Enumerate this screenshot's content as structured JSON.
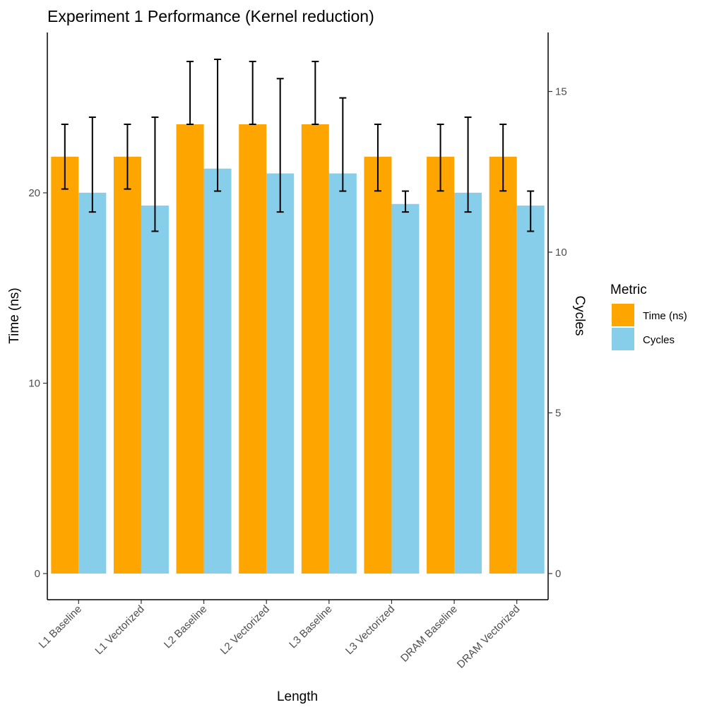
{
  "chart_data": {
    "type": "bar",
    "title": "Experiment 1 Performance (Kernel reduction)",
    "xlabel": "Length",
    "ylabel": "Time (ns)",
    "y2label": "Cycles",
    "categories": [
      "L1 Baseline",
      "L1 Vectorized",
      "L2 Baseline",
      "L2 Vectorized",
      "L3 Baseline",
      "L3 Vectorized",
      "DRAM Baseline",
      "DRAM Vectorized"
    ],
    "ylim": [
      0,
      28
    ],
    "y2lim": [
      0,
      16.8
    ],
    "yticks": [
      0,
      10,
      20
    ],
    "y2ticks": [
      0,
      5,
      10,
      15
    ],
    "series": [
      {
        "name": "Time (ns)",
        "axis": "left",
        "color": "#FFA500",
        "values": [
          21.9,
          21.9,
          23.6,
          23.6,
          23.6,
          21.9,
          21.9,
          21.9
        ],
        "error_low": [
          20.2,
          20.2,
          23.6,
          23.6,
          23.6,
          20.1,
          20.1,
          20.1
        ],
        "error_high": [
          23.6,
          23.6,
          26.9,
          26.9,
          26.9,
          23.6,
          23.6,
          23.6
        ]
      },
      {
        "name": "Cycles",
        "axis": "right",
        "color": "#87CEEB",
        "values": [
          11.85,
          11.45,
          12.6,
          12.45,
          12.45,
          11.5,
          11.85,
          11.45
        ],
        "error_low": [
          11.25,
          10.65,
          11.9,
          11.25,
          11.9,
          11.25,
          11.25,
          10.65
        ],
        "error_high": [
          14.2,
          14.2,
          16.0,
          15.4,
          14.8,
          11.9,
          14.2,
          11.9
        ]
      }
    ],
    "legend": {
      "title": "Metric",
      "position": "right",
      "items": [
        "Time (ns)",
        "Cycles"
      ]
    },
    "grid": false
  }
}
